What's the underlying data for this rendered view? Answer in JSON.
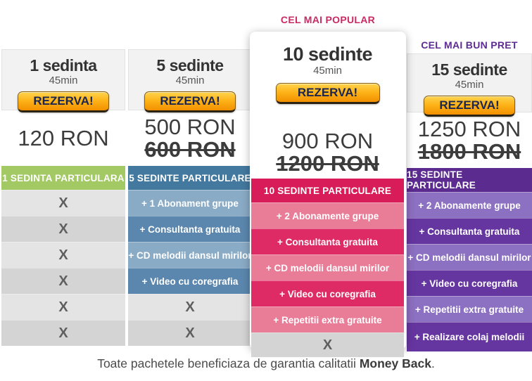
{
  "ribbons": {
    "popular": "CEL MAI POPULAR",
    "best_price": "CEL MAI BUN PRET"
  },
  "cta_label": "REZERVA!",
  "x_mark": "X",
  "footnote": {
    "text": "Toate pachetele beneficiaza de garantia calitatii ",
    "highlight": "Money Back",
    "period": "."
  },
  "colors": {
    "green_accent": "#a3c964",
    "blue_accent": "#44799f",
    "pink_accent": "#d81b59",
    "purple_accent": "#5b2b8f",
    "ribbon_popular": "#c92a62",
    "ribbon_best_price": "#5d2c91",
    "cta_orange": "#fdb217"
  },
  "columns": [
    {
      "title": "1 sedinta",
      "duration": "45min",
      "price": "120 RON",
      "banner": "1 SEDINTA PARTICULARA",
      "rows": [
        "X",
        "X",
        "X",
        "X",
        "X",
        "X"
      ]
    },
    {
      "title": "5 sedinte",
      "duration": "45min",
      "price": "500 RON",
      "old_price": "600 RON",
      "banner": "5 SEDINTE PARTICULARE",
      "rows": [
        "+ 1 Abonament grupe",
        "+ Consultanta gratuita",
        "+ CD melodii dansul mirilor",
        "+ Video cu coregrafia",
        "X",
        "X"
      ]
    },
    {
      "title": "10 sedinte",
      "duration": "45min",
      "price": "900 RON",
      "old_price": "1200 RON",
      "banner": "10 SEDINTE PARTICULARE",
      "rows": [
        "+ 2 Abonamente grupe",
        "+ Consultanta gratuita",
        "+ CD melodii dansul mirilor",
        "+ Video cu coregrafia",
        "+ Repetitii extra gratuite",
        "X"
      ]
    },
    {
      "title": "15 sedinte",
      "duration": "45min",
      "price": "1250 RON",
      "old_price": "1800 RON",
      "banner": "15 SEDINTE PARTICULARE",
      "rows": [
        "+ 2 Abonamente grupe",
        "+ Consultanta gratuita",
        "+ CD melodii dansul mirilor",
        "+ Video cu coregrafia",
        "+ Repetitii extra gratuite",
        "+ Realizare colaj melodii"
      ]
    }
  ]
}
